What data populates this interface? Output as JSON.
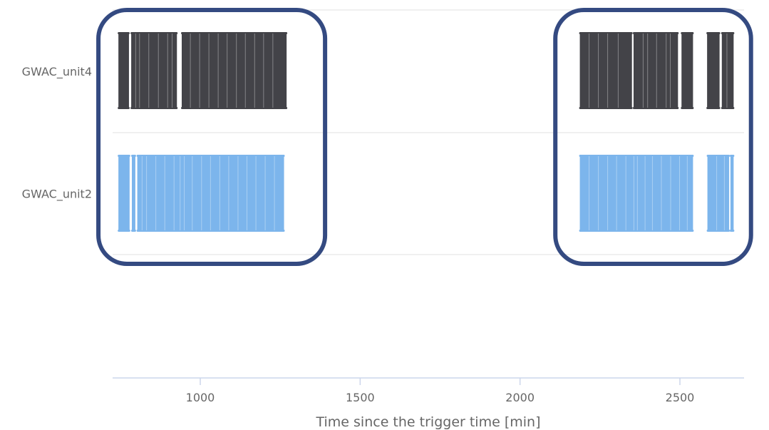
{
  "chart_data": {
    "type": "timeline",
    "xlabel": "Time since the trigger time [min]",
    "xlim": [
      726,
      2700
    ],
    "x_ticks": [
      1000,
      1500,
      2000,
      2500
    ],
    "categories": [
      "GWAC_unit4",
      "GWAC_unit2"
    ],
    "grid": true,
    "series": [
      {
        "category": "GWAC_unit4",
        "color": "#434348",
        "intervals": [
          [
            744,
            777
          ],
          [
            784,
            927
          ],
          [
            942,
            1270
          ],
          [
            2187,
            2350
          ],
          [
            2355,
            2494
          ],
          [
            2505,
            2541
          ],
          [
            2585,
            2624
          ],
          [
            2631,
            2668
          ]
        ],
        "dividers": [
          798,
          810,
          839,
          869,
          898,
          912,
          969,
          998,
          1027,
          1056,
          1084,
          1113,
          1141,
          1170,
          1198,
          1227,
          2216,
          2245,
          2274,
          2307,
          2385,
          2399,
          2427,
          2457,
          2470,
          2647
        ]
      },
      {
        "category": "GWAC_unit2",
        "color": "#7cb5ec",
        "intervals": [
          [
            744,
            779
          ],
          [
            786,
            797
          ],
          [
            803,
            1262
          ],
          [
            2187,
            2541
          ],
          [
            2586,
            2654
          ],
          [
            2658,
            2668
          ]
        ],
        "dividers": [
          818,
          832,
          861,
          889,
          918,
          937,
          950,
          975,
          1004,
          1032,
          1061,
          1089,
          1118,
          1146,
          1174,
          1203,
          1232,
          2216,
          2245,
          2274,
          2302,
          2331,
          2356,
          2367,
          2391,
          2414,
          2442,
          2471,
          2499,
          2523,
          2615,
          2639
        ]
      }
    ],
    "highlight_boxes": [
      {
        "x": [
          726,
          1368
        ],
        "categories": [
          "GWAC_unit4",
          "GWAC_unit2"
        ],
        "color": "#344a81"
      },
      {
        "x": [
          2155,
          2700
        ],
        "categories": [
          "GWAC_unit4",
          "GWAC_unit2"
        ],
        "color": "#344a81"
      }
    ]
  }
}
